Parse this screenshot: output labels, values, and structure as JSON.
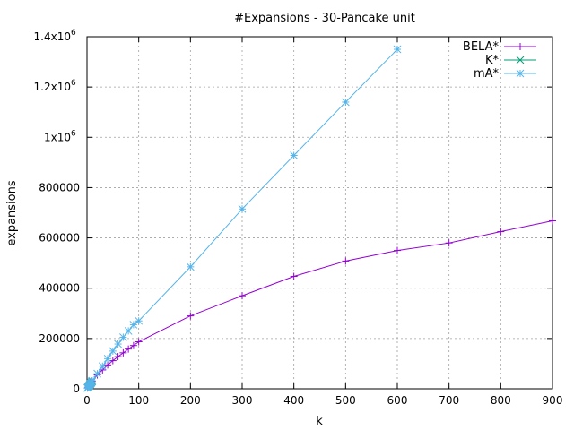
{
  "chart_data": {
    "type": "line",
    "title": "#Expansions - 30-Pancake unit",
    "xlabel": "k",
    "ylabel": "expansions",
    "xlim": [
      0,
      900
    ],
    "ylim": [
      0,
      1400000
    ],
    "grid": true,
    "legend_position": "top-right",
    "x_ticks": [
      {
        "value": 0,
        "label": "0"
      },
      {
        "value": 100,
        "label": "100"
      },
      {
        "value": 200,
        "label": "200"
      },
      {
        "value": 300,
        "label": "300"
      },
      {
        "value": 400,
        "label": "400"
      },
      {
        "value": 500,
        "label": "500"
      },
      {
        "value": 600,
        "label": "600"
      },
      {
        "value": 700,
        "label": "700"
      },
      {
        "value": 800,
        "label": "800"
      },
      {
        "value": 900,
        "label": "900"
      }
    ],
    "y_ticks": [
      {
        "value": 0,
        "label": "0",
        "exp": ""
      },
      {
        "value": 200000,
        "label": "200000",
        "exp": ""
      },
      {
        "value": 400000,
        "label": "400000",
        "exp": ""
      },
      {
        "value": 600000,
        "label": "600000",
        "exp": ""
      },
      {
        "value": 800000,
        "label": "800000",
        "exp": ""
      },
      {
        "value": 1000000,
        "label": "1x10",
        "exp": "6"
      },
      {
        "value": 1200000,
        "label": "1.2x10",
        "exp": "6"
      },
      {
        "value": 1400000,
        "label": "1.4x10",
        "exp": "6"
      }
    ],
    "series": [
      {
        "name": "BELA*",
        "color": "#9400d3",
        "marker": "plus",
        "x": [
          1,
          2,
          3,
          4,
          5,
          6,
          7,
          8,
          9,
          10,
          20,
          30,
          40,
          50,
          60,
          70,
          80,
          90,
          100,
          200,
          300,
          400,
          500,
          600,
          700,
          800,
          900
        ],
        "y": [
          3000,
          6000,
          9000,
          12000,
          15000,
          18000,
          21000,
          24000,
          27000,
          30000,
          55000,
          75000,
          95000,
          112000,
          128000,
          143000,
          158000,
          172000,
          187000,
          290000,
          370000,
          447000,
          508000,
          550000,
          580000,
          625000,
          668000
        ]
      },
      {
        "name": "K*",
        "color": "#009e73",
        "marker": "cross",
        "x": [
          1,
          2,
          3,
          4,
          5,
          6,
          7,
          8,
          9,
          10
        ],
        "y": [
          3000,
          6000,
          9000,
          12000,
          15000,
          18000,
          21000,
          24000,
          27000,
          30000
        ]
      },
      {
        "name": "mA*",
        "color": "#56b4e9",
        "marker": "star",
        "x": [
          1,
          2,
          3,
          4,
          5,
          6,
          7,
          8,
          9,
          10,
          20,
          30,
          40,
          50,
          60,
          70,
          80,
          90,
          100,
          200,
          300,
          400,
          500,
          600
        ],
        "y": [
          3000,
          6000,
          9000,
          12000,
          15000,
          18000,
          21000,
          24000,
          27000,
          32000,
          60000,
          90000,
          120000,
          150000,
          178000,
          205000,
          230000,
          255000,
          270000,
          485000,
          715000,
          928000,
          1140000,
          1350000
        ]
      }
    ]
  }
}
